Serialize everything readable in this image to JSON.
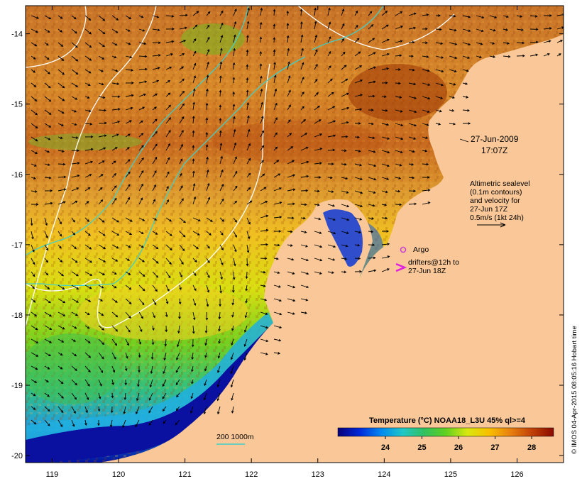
{
  "map": {
    "lon_ticks": [
      "119",
      "120",
      "121",
      "122",
      "123",
      "124",
      "125",
      "126"
    ],
    "lat_ticks": [
      "-14",
      "-15",
      "-16",
      "-17",
      "-18",
      "-19",
      "-20"
    ],
    "lon_range": [
      118.6,
      126.7
    ],
    "lat_range": [
      -20.1,
      -13.6
    ]
  },
  "annotations": {
    "date": "27-Jun-2009",
    "time": "17:07Z",
    "altimetry_lines": [
      "Altimetric sealevel",
      "(0.1m contours)",
      "and velocity for",
      "27-Jun 17Z",
      "0.5m/s (1kt 24h)"
    ],
    "argo_label": "Argo",
    "drifters_lines": [
      "drifters@12h to",
      "27-Jun 18Z"
    ],
    "depth_legend": "200  1000m"
  },
  "colorbar": {
    "title": "Temperature (°C) NOAA18_L3U 45% ql>=4",
    "ticks": [
      "24",
      "25",
      "26",
      "27",
      "28"
    ],
    "colors": [
      "#08007a",
      "#0028d8",
      "#0088f0",
      "#20c8c8",
      "#30c060",
      "#60d020",
      "#d8e810",
      "#f8c000",
      "#e88010",
      "#c04008",
      "#8a0a00"
    ]
  },
  "credit": "© IMOS 04-Apr-2015 08:05:16 Hobart time",
  "style": {
    "land": "#fac898",
    "warm_sst": "#c86a18",
    "argo_color": "#d040d0",
    "contour_white": "#ffffff",
    "contour_cyan": "#40d0c8"
  }
}
